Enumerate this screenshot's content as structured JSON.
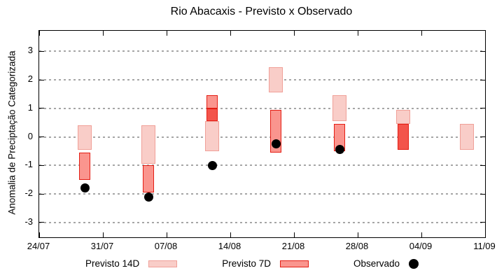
{
  "chart_data": {
    "type": "candlestick-forecast",
    "title": "Rio Abacaxis - Previsto x Observado",
    "ylabel": "Anomalia de Preciptação Categorizada",
    "grid": true,
    "ylim": [
      -3.52,
      3.72
    ],
    "yticks": [
      {
        "label": "3",
        "value": 3
      },
      {
        "label": "2",
        "value": 2
      },
      {
        "label": "1",
        "value": 1
      },
      {
        "label": "0",
        "value": 0
      },
      {
        "label": "-1",
        "value": -1
      },
      {
        "label": "-2",
        "value": -2
      },
      {
        "label": "-3",
        "value": -3
      }
    ],
    "xlim_days": [
      0,
      49
    ],
    "xticks": [
      {
        "label": "24/07",
        "day": 0
      },
      {
        "label": "31/07",
        "day": 7
      },
      {
        "label": "07/08",
        "day": 14
      },
      {
        "label": "14/08",
        "day": 21
      },
      {
        "label": "21/08",
        "day": 28
      },
      {
        "label": "28/08",
        "day": 35
      },
      {
        "label": "04/09",
        "day": 42
      },
      {
        "label": "11/09",
        "day": 49
      }
    ],
    "legend": [
      {
        "label": "Previsto 14D",
        "series": "14d"
      },
      {
        "label": "Previsto 7D",
        "series": "7d"
      },
      {
        "label": "Observado",
        "series": "obs"
      }
    ],
    "colors": {
      "previsto14_fill": "#f9cdc8",
      "previsto14_border": "#f0a098",
      "previsto7_fill": "#fa958e",
      "previsto7_border": "#e41e14",
      "previsto7_dark_fill": "#f3544b",
      "observado": "#000000",
      "grid": "#a6a6a6"
    },
    "clusters": [
      {
        "day": 5,
        "observed": -1.8,
        "boxes": [
          {
            "series": "14d",
            "lo": -0.45,
            "hi": 0.4
          },
          {
            "series": "7d",
            "lo": -1.5,
            "hi": -0.55
          }
        ]
      },
      {
        "day": 12,
        "observed": -2.1,
        "boxes": [
          {
            "series": "14d",
            "lo": -0.95,
            "hi": 0.4
          },
          {
            "series": "7d",
            "lo": -1.95,
            "hi": -1.0
          }
        ]
      },
      {
        "day": 19,
        "observed": -1.0,
        "boxes": [
          {
            "series": "14d",
            "lo": -0.5,
            "hi": 0.55
          },
          {
            "series": "7d",
            "lo": 1.0,
            "hi": 1.45
          },
          {
            "series": "7d_dark",
            "lo": 0.55,
            "hi": 1.0
          }
        ]
      },
      {
        "day": 26,
        "observed": -0.25,
        "boxes": [
          {
            "series": "14d",
            "lo": 1.55,
            "hi": 2.45
          },
          {
            "series": "7d",
            "lo": -0.55,
            "hi": 0.95
          }
        ]
      },
      {
        "day": 33,
        "observed": -0.45,
        "boxes": [
          {
            "series": "14d",
            "lo": 0.55,
            "hi": 1.45
          },
          {
            "series": "7d",
            "lo": -0.5,
            "hi": 0.45
          }
        ]
      },
      {
        "day": 40,
        "observed": null,
        "boxes": [
          {
            "series": "14d",
            "lo": 0.45,
            "hi": 0.95
          },
          {
            "series": "7d_dark",
            "lo": -0.45,
            "hi": 0.45
          }
        ]
      },
      {
        "day": 47,
        "observed": null,
        "boxes": [
          {
            "series": "14d",
            "lo": -0.45,
            "hi": 0.45
          }
        ]
      }
    ]
  }
}
